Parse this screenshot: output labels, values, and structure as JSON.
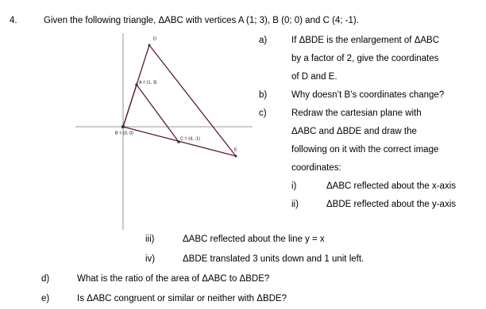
{
  "question": {
    "number": "4.",
    "intro": "Given the following triangle, ΔABC with vertices A (1; 3), B (0; 0) and C (4; -1).",
    "figure": {
      "labels": [
        "D",
        "A = (1, 3)",
        "B = (0, 0)",
        "C = (4, -1)",
        "E"
      ]
    },
    "parts": [
      {
        "label": "a)",
        "lines": [
          "If ΔBDE is the enlargement of ΔABC",
          "by a factor of 2, give the coordinates",
          "of D and E."
        ]
      },
      {
        "label": "b)",
        "lines": [
          "Why doesn’t B’s coordinates change?"
        ]
      },
      {
        "label": "c)",
        "lines": [
          "Redraw the cartesian plane with",
          "ΔABC and ΔBDE and draw the",
          "following on it with the correct image",
          "coordinates:"
        ],
        "subparts": [
          {
            "label": "i)",
            "text": "ΔABC reflected about the x-axis"
          },
          {
            "label": "ii)",
            "text": "ΔBDE reflected about the y-axis"
          },
          {
            "label": "iii)",
            "text": "ΔABC reflected about the line y = x"
          },
          {
            "label": "iv)",
            "text": "ΔBDE translated 3 units down and 1 unit left."
          }
        ]
      },
      {
        "label": "d)",
        "lines": [
          "What is the ratio of the area of ΔABC to ΔBDE?"
        ]
      },
      {
        "label": "e)",
        "lines": [
          "Is ΔABC congruent or similar or neither with ΔBDE?"
        ]
      }
    ]
  }
}
